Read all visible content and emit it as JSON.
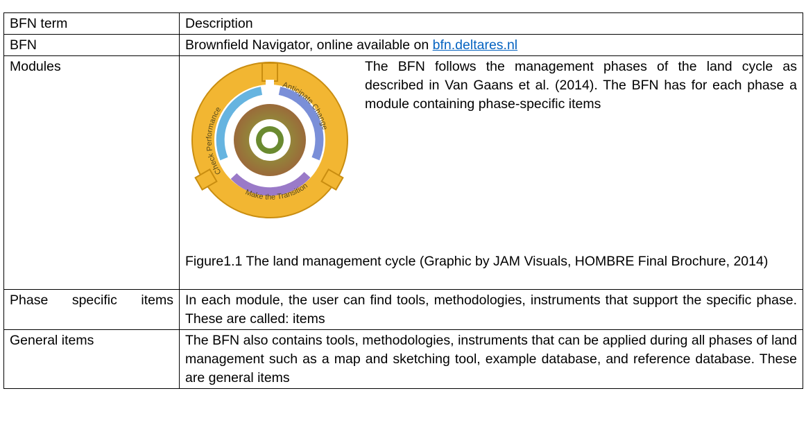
{
  "table": {
    "header": [
      "BFN term",
      "Description"
    ],
    "rows": [
      {
        "term": "BFN",
        "description": "Brownfield Navigator, online available on ",
        "link": "bfn.deltares.nl"
      },
      {
        "term": "Modules",
        "description": "The BFN follows the management phases of the land cycle as described in Van Gaans et al. (2014). The BFN has for each phase a module containing phase-specific items",
        "figure_labels": [
          "Check Performance",
          "Anticipate Change",
          "Make the Transition"
        ],
        "caption": "Figure1.1 The land management cycle (Graphic by JAM Visuals, HOMBRE Final Brochure, 2014)"
      },
      {
        "term": "Phase specific items",
        "description": "In each module, the user can find tools, methodologies, instruments that support the specific phase. These  are called: items"
      },
      {
        "term": "General items",
        "description": "The BFN also contains tools, methodologies, instruments that can be applied during all phases of land management such as a map and sketching tool, example database, and reference database. These are general items"
      }
    ]
  }
}
